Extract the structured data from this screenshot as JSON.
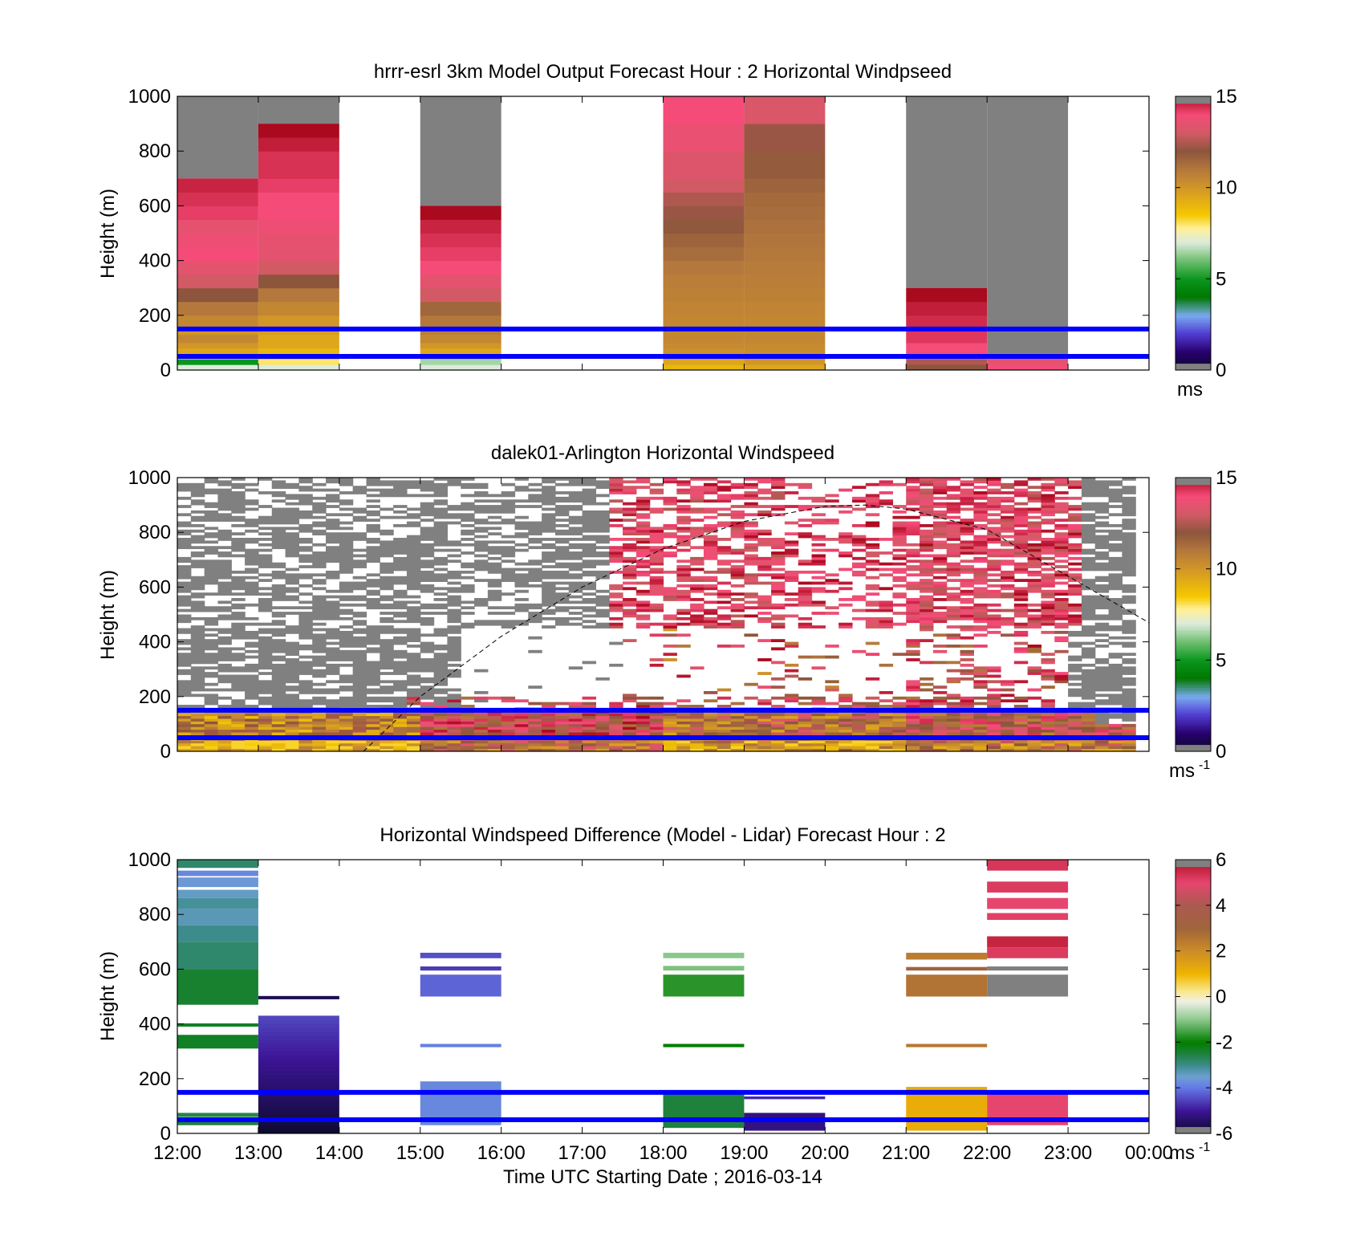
{
  "colors": {
    "ref_line": "#0000ff",
    "axis": "#000000",
    "no_data": "#808080"
  },
  "x_ticks": [
    "12:00",
    "13:00",
    "14:00",
    "15:00",
    "16:00",
    "17:00",
    "18:00",
    "19:00",
    "20:00",
    "21:00",
    "22:00",
    "23:00",
    "00:00"
  ],
  "y_ticks": [
    "0",
    "200",
    "400",
    "600",
    "800",
    "1000"
  ],
  "chart_data": [
    {
      "type": "heatmap",
      "title": "hrrr-esrl 3km Model Output   Forecast Hour : 2 Horizontal Windpseed",
      "ylabel": "Height (m)",
      "xlim": [
        "12:00",
        "00:00"
      ],
      "ylim": [
        0,
        1000
      ],
      "colorbar": {
        "ticks": [
          "0",
          "5",
          "10",
          "15"
        ],
        "range": [
          0,
          15
        ],
        "unit_label": "ms"
      },
      "reference_lines_m": [
        50,
        150
      ],
      "columns": [
        {
          "hour": 12,
          "top": 700,
          "no_data_above": 1000,
          "values": [
            {
              "z": 0,
              "v": 7
            },
            {
              "z": 20,
              "v": 5
            },
            {
              "z": 40,
              "v": 8.5
            },
            {
              "z": 60,
              "v": 9.5
            },
            {
              "z": 80,
              "v": 10
            },
            {
              "z": 100,
              "v": 10.5
            },
            {
              "z": 130,
              "v": 10
            },
            {
              "z": 150,
              "v": 10.5
            },
            {
              "z": 200,
              "v": 11
            },
            {
              "z": 250,
              "v": 12
            },
            {
              "z": 300,
              "v": 13
            },
            {
              "z": 350,
              "v": 13.5
            },
            {
              "z": 400,
              "v": 14
            },
            {
              "z": 450,
              "v": 13.8
            },
            {
              "z": 500,
              "v": 13.6
            },
            {
              "z": 550,
              "v": 14.2
            },
            {
              "z": 600,
              "v": 14.4
            },
            {
              "z": 650,
              "v": 14.6
            }
          ]
        },
        {
          "hour": 13,
          "top": 900,
          "no_data_above": 1000,
          "values": [
            {
              "z": 0,
              "v": 7
            },
            {
              "z": 20,
              "v": 8
            },
            {
              "z": 40,
              "v": 8.5
            },
            {
              "z": 60,
              "v": 9
            },
            {
              "z": 80,
              "v": 9.5
            },
            {
              "z": 100,
              "v": 9.5
            },
            {
              "z": 130,
              "v": 9.8
            },
            {
              "z": 150,
              "v": 10
            },
            {
              "z": 200,
              "v": 10.5
            },
            {
              "z": 250,
              "v": 11
            },
            {
              "z": 300,
              "v": 12
            },
            {
              "z": 350,
              "v": 13
            },
            {
              "z": 400,
              "v": 13.5
            },
            {
              "z": 450,
              "v": 13.6
            },
            {
              "z": 500,
              "v": 13.8
            },
            {
              "z": 550,
              "v": 14
            },
            {
              "z": 600,
              "v": 14
            },
            {
              "z": 650,
              "v": 14.2
            },
            {
              "z": 700,
              "v": 14.4
            },
            {
              "z": 800,
              "v": 14.7
            },
            {
              "z": 850,
              "v": 15
            }
          ]
        },
        {
          "hour": 15,
          "top": 600,
          "no_data_above": 1000,
          "values": [
            {
              "z": 0,
              "v": 7
            },
            {
              "z": 20,
              "v": 6.5
            },
            {
              "z": 40,
              "v": 9
            },
            {
              "z": 60,
              "v": 9.5
            },
            {
              "z": 80,
              "v": 10
            },
            {
              "z": 100,
              "v": 10.5
            },
            {
              "z": 130,
              "v": 10.8
            },
            {
              "z": 150,
              "v": 11
            },
            {
              "z": 200,
              "v": 11.5
            },
            {
              "z": 250,
              "v": 13
            },
            {
              "z": 300,
              "v": 13.5
            },
            {
              "z": 350,
              "v": 14
            },
            {
              "z": 400,
              "v": 14.2
            },
            {
              "z": 450,
              "v": 14.4
            },
            {
              "z": 500,
              "v": 14.6
            },
            {
              "z": 550,
              "v": 15
            }
          ]
        },
        {
          "hour": 18,
          "top": 1000,
          "no_data_above": null,
          "values": [
            {
              "z": 0,
              "v": 9
            },
            {
              "z": 20,
              "v": 9.5
            },
            {
              "z": 40,
              "v": 10
            },
            {
              "z": 60,
              "v": 10.2
            },
            {
              "z": 80,
              "v": 10.4
            },
            {
              "z": 100,
              "v": 10.5
            },
            {
              "z": 130,
              "v": 10.5
            },
            {
              "z": 150,
              "v": 10.5
            },
            {
              "z": 200,
              "v": 10.6
            },
            {
              "z": 250,
              "v": 10.7
            },
            {
              "z": 300,
              "v": 10.8
            },
            {
              "z": 350,
              "v": 11
            },
            {
              "z": 400,
              "v": 11.3
            },
            {
              "z": 450,
              "v": 11.6
            },
            {
              "z": 500,
              "v": 11.9
            },
            {
              "z": 550,
              "v": 12.2
            },
            {
              "z": 600,
              "v": 12.5
            },
            {
              "z": 650,
              "v": 13
            },
            {
              "z": 700,
              "v": 13.3
            },
            {
              "z": 800,
              "v": 13.7
            },
            {
              "z": 900,
              "v": 14
            }
          ]
        },
        {
          "hour": 19,
          "top": 1000,
          "no_data_above": null,
          "values": [
            {
              "z": 0,
              "v": 9.5
            },
            {
              "z": 20,
              "v": 10
            },
            {
              "z": 40,
              "v": 10.2
            },
            {
              "z": 60,
              "v": 10.3
            },
            {
              "z": 80,
              "v": 10.4
            },
            {
              "z": 100,
              "v": 10.5
            },
            {
              "z": 150,
              "v": 10.5
            },
            {
              "z": 200,
              "v": 10.6
            },
            {
              "z": 250,
              "v": 10.7
            },
            {
              "z": 300,
              "v": 10.8
            },
            {
              "z": 350,
              "v": 10.9
            },
            {
              "z": 400,
              "v": 11
            },
            {
              "z": 450,
              "v": 11.1
            },
            {
              "z": 500,
              "v": 11.2
            },
            {
              "z": 550,
              "v": 11.3
            },
            {
              "z": 600,
              "v": 11.4
            },
            {
              "z": 650,
              "v": 11.6
            },
            {
              "z": 700,
              "v": 11.8
            },
            {
              "z": 800,
              "v": 12.2
            },
            {
              "z": 900,
              "v": 13.2
            }
          ]
        },
        {
          "hour": 21,
          "top": 300,
          "no_data_above": 1000,
          "values": [
            {
              "z": 0,
              "v": 12
            },
            {
              "z": 20,
              "v": 12.5
            },
            {
              "z": 40,
              "v": 13.5
            },
            {
              "z": 60,
              "v": 14
            },
            {
              "z": 100,
              "v": 14.3
            },
            {
              "z": 150,
              "v": 14.5
            },
            {
              "z": 200,
              "v": 14.7
            },
            {
              "z": 250,
              "v": 15
            }
          ]
        },
        {
          "hour": 22,
          "top": 60,
          "no_data_above": 1000,
          "values": [
            {
              "z": 0,
              "v": 14
            },
            {
              "z": 20,
              "v": 13.5
            },
            {
              "z": 40,
              "v": 14
            }
          ]
        }
      ]
    },
    {
      "type": "heatmap",
      "title": "dalek01-Arlington  Horizontal Windspeed",
      "ylabel": "Height (m)",
      "xlim": [
        "12:00",
        "00:00"
      ],
      "ylim": [
        0,
        1000
      ],
      "colorbar": {
        "ticks": [
          "0",
          "5",
          "10",
          "15"
        ],
        "range": [
          0,
          15
        ],
        "unit_label": "ms",
        "unit_exponent": "-1"
      },
      "reference_lines_m": [
        50,
        150
      ],
      "overlay_curve": {
        "style": "dashed",
        "points": [
          [
            14.3,
            0
          ],
          [
            15,
            200
          ],
          [
            16,
            420
          ],
          [
            17,
            600
          ],
          [
            18,
            740
          ],
          [
            19,
            840
          ],
          [
            20,
            895
          ],
          [
            20.5,
            900
          ],
          [
            21,
            885
          ],
          [
            22,
            810
          ],
          [
            23,
            640
          ],
          [
            24,
            470
          ]
        ]
      },
      "pattern": "dense streaky lidar retrievals in 10-minute columns; grey = below threshold above ~450 m before 17:30, pinks/reds aloft 17:30-23:00, yellows/browns below 150 m"
    },
    {
      "type": "heatmap",
      "title": "Horizontal Windspeed Difference (Model - Lidar) Forecast Hour : 2",
      "xlabel": "Time UTC  Starting Date ; 2016-03-14",
      "ylabel": "Height (m)",
      "xlim": [
        "12:00",
        "00:00"
      ],
      "ylim": [
        0,
        1000
      ],
      "colorbar": {
        "ticks": [
          "-6",
          "-4",
          "-2",
          "0",
          "2",
          "4",
          "6"
        ],
        "range": [
          -6,
          6
        ],
        "unit_label": "ms",
        "unit_exponent": "-1"
      },
      "reference_lines_m": [
        50,
        150
      ],
      "columns": [
        {
          "hour": 12,
          "bands": [
            {
              "z0": 970,
              "z1": 1000,
              "v": -2.8
            },
            {
              "z0": 940,
              "z1": 960,
              "v": -3.8
            },
            {
              "z0": 900,
              "z1": 935,
              "v": -3.6
            },
            {
              "z0": 860,
              "z1": 890,
              "v": -3.4
            },
            {
              "z0": 820,
              "z1": 860,
              "v": -3.1
            },
            {
              "z0": 760,
              "z1": 820,
              "v": -3.3
            },
            {
              "z0": 700,
              "z1": 760,
              "v": -3.0
            },
            {
              "z0": 600,
              "z1": 700,
              "v": -2.8
            },
            {
              "z0": 470,
              "z1": 600,
              "v": -2.4
            },
            {
              "z0": 390,
              "z1": 402,
              "v": -2.3
            },
            {
              "z0": 310,
              "z1": 360,
              "v": -2.3
            },
            {
              "z0": 60,
              "z1": 75,
              "v": -2.6
            },
            {
              "z0": 30,
              "z1": 45,
              "v": -2.5
            }
          ]
        },
        {
          "hour": 13,
          "bands": [
            {
              "z0": 490,
              "z1": 502,
              "v": -5.6
            },
            {
              "z0": 0,
              "z1": 430,
              "v": -5,
              "gradient": [
                -4.5,
                -5.9
              ]
            }
          ]
        },
        {
          "hour": 15,
          "bands": [
            {
              "z0": 640,
              "z1": 660,
              "v": -4.4
            },
            {
              "z0": 595,
              "z1": 610,
              "v": -4.6
            },
            {
              "z0": 500,
              "z1": 580,
              "v": -4.2
            },
            {
              "z0": 315,
              "z1": 327,
              "v": -3.9
            },
            {
              "z0": 30,
              "z1": 190,
              "v": -3.8
            }
          ]
        },
        {
          "hour": 18,
          "bands": [
            {
              "z0": 640,
              "z1": 660,
              "v": -1.0
            },
            {
              "z0": 595,
              "z1": 612,
              "v": -1.1
            },
            {
              "z0": 500,
              "z1": 580,
              "v": -1.7
            },
            {
              "z0": 315,
              "z1": 327,
              "v": -2.0
            },
            {
              "z0": 20,
              "z1": 150,
              "v": -2.5
            }
          ]
        },
        {
          "hour": 19,
          "bands": [
            {
              "z0": 125,
              "z1": 135,
              "v": -4.8
            },
            {
              "z0": 10,
              "z1": 75,
              "v": -5.2
            }
          ]
        },
        {
          "hour": 21,
          "bands": [
            {
              "z0": 635,
              "z1": 660,
              "v": 2.4
            },
            {
              "z0": 595,
              "z1": 608,
              "v": 3.2
            },
            {
              "z0": 500,
              "z1": 580,
              "v": 2.6
            },
            {
              "z0": 315,
              "z1": 327,
              "v": 2.5
            },
            {
              "z0": 10,
              "z1": 170,
              "v": 1.2
            }
          ]
        },
        {
          "hour": 22,
          "bands": [
            {
              "z0": 960,
              "z1": 1000,
              "v": 5.3
            },
            {
              "z0": 880,
              "z1": 920,
              "v": 5.2
            },
            {
              "z0": 820,
              "z1": 860,
              "v": 5.0
            },
            {
              "z0": 780,
              "z1": 805,
              "v": 5.1
            },
            {
              "z0": 680,
              "z1": 720,
              "v": 5.6
            },
            {
              "z0": 640,
              "z1": 680,
              "v": 5.2
            },
            {
              "z0": 595,
              "z1": 610,
              "v": 7
            },
            {
              "z0": 500,
              "z1": 580,
              "v": 7
            },
            {
              "z0": 30,
              "z1": 150,
              "v": 5.0
            }
          ]
        }
      ]
    }
  ]
}
